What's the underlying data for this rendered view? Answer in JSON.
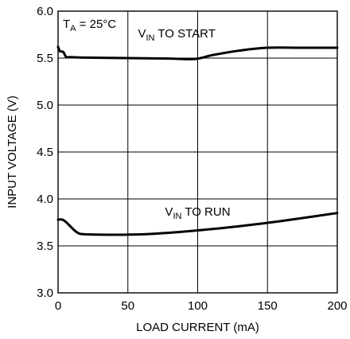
{
  "chart_data": {
    "type": "line",
    "title": "",
    "xlabel": "LOAD CURRENT (mA)",
    "ylabel": "INPUT VOLTAGE (V)",
    "xlim": [
      0,
      200
    ],
    "ylim": [
      3.0,
      6.0
    ],
    "xticks": [
      0,
      50,
      100,
      150,
      200
    ],
    "yticks": [
      3.0,
      3.5,
      4.0,
      4.5,
      5.0,
      5.5,
      6.0
    ],
    "xtick_labels": [
      "0",
      "50",
      "100",
      "150",
      "200"
    ],
    "ytick_labels": [
      "3.0",
      "3.5",
      "4.0",
      "4.5",
      "5.0",
      "5.5",
      "6.0"
    ],
    "grid": true,
    "condition": {
      "main": "T",
      "sub": "A",
      "rest": " = 25°C"
    },
    "series": [
      {
        "label_main": "V",
        "label_sub": "IN",
        "label_rest": " TO START",
        "label_at": [
          85,
          5.72
        ],
        "x": [
          0,
          1,
          2,
          3,
          4,
          5,
          6,
          8,
          10,
          20,
          50,
          80,
          98,
          110,
          130,
          150,
          175,
          200
        ],
        "y": [
          5.62,
          5.58,
          5.57,
          5.57,
          5.56,
          5.53,
          5.51,
          5.51,
          5.51,
          5.505,
          5.5,
          5.495,
          5.49,
          5.53,
          5.58,
          5.61,
          5.61,
          5.61
        ]
      },
      {
        "label_main": "V",
        "label_sub": "IN",
        "label_rest": " TO RUN",
        "label_at": [
          100,
          3.82
        ],
        "x": [
          0,
          3,
          6,
          10,
          14,
          18,
          30,
          50,
          70,
          100,
          130,
          160,
          200
        ],
        "y": [
          3.78,
          3.78,
          3.75,
          3.69,
          3.64,
          3.625,
          3.62,
          3.62,
          3.63,
          3.665,
          3.71,
          3.765,
          3.85
        ]
      }
    ]
  }
}
